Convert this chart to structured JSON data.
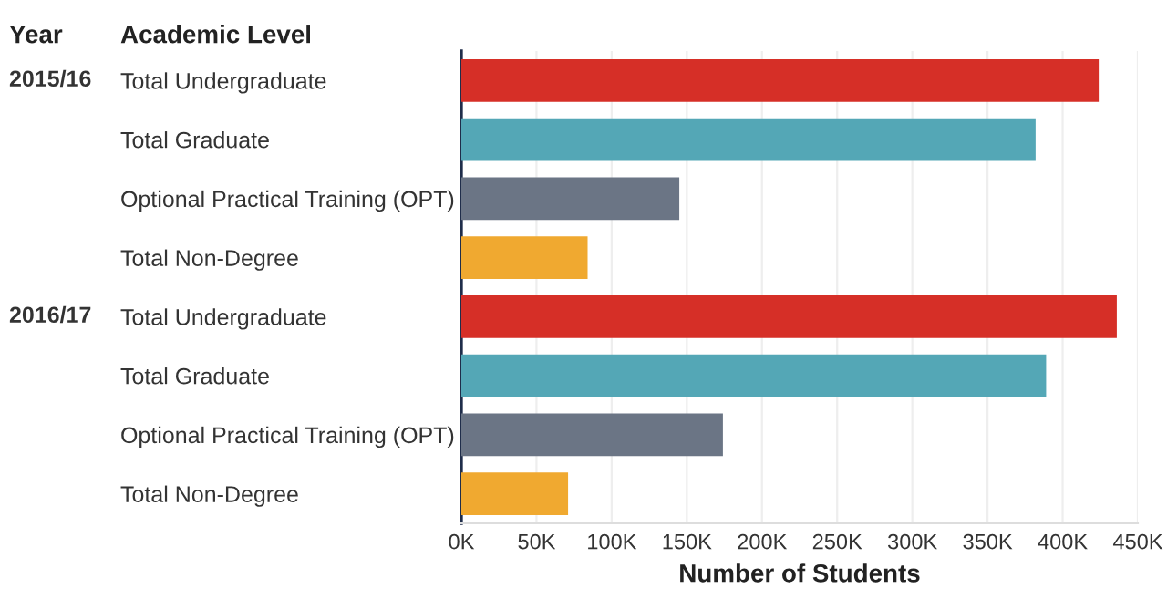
{
  "chart_data": {
    "type": "bar",
    "orientation": "horizontal",
    "categories": [
      "Total Undergraduate",
      "Total Graduate",
      "Optional Practical Training (OPT)",
      "Total Non-Degree",
      "Total Undergraduate",
      "Total Graduate",
      "Optional Practical Training (OPT)",
      "Total Non-Degree"
    ],
    "values": [
      424000,
      382000,
      145000,
      84000,
      436000,
      389000,
      174000,
      71000
    ],
    "colors": [
      "#d62f27",
      "#54a7b6",
      "#6b7585",
      "#f0a930",
      "#d62f27",
      "#54a7b6",
      "#6b7585",
      "#f0a930"
    ],
    "xlabel": "Number of Students",
    "xlim": [
      0,
      450000
    ],
    "xticks": [
      {
        "value": 0,
        "label": "0K"
      },
      {
        "value": 50000,
        "label": "50K"
      },
      {
        "value": 100000,
        "label": "100K"
      },
      {
        "value": 150000,
        "label": "150K"
      },
      {
        "value": 200000,
        "label": "200K"
      },
      {
        "value": 250000,
        "label": "250K"
      },
      {
        "value": 300000,
        "label": "300K"
      },
      {
        "value": 350000,
        "label": "350K"
      },
      {
        "value": 400000,
        "label": "400K"
      },
      {
        "value": 450000,
        "label": "450K"
      }
    ],
    "annotations": [
      "Year",
      "Academic Level",
      "2015/16",
      "2016/17"
    ],
    "grid": "x"
  }
}
